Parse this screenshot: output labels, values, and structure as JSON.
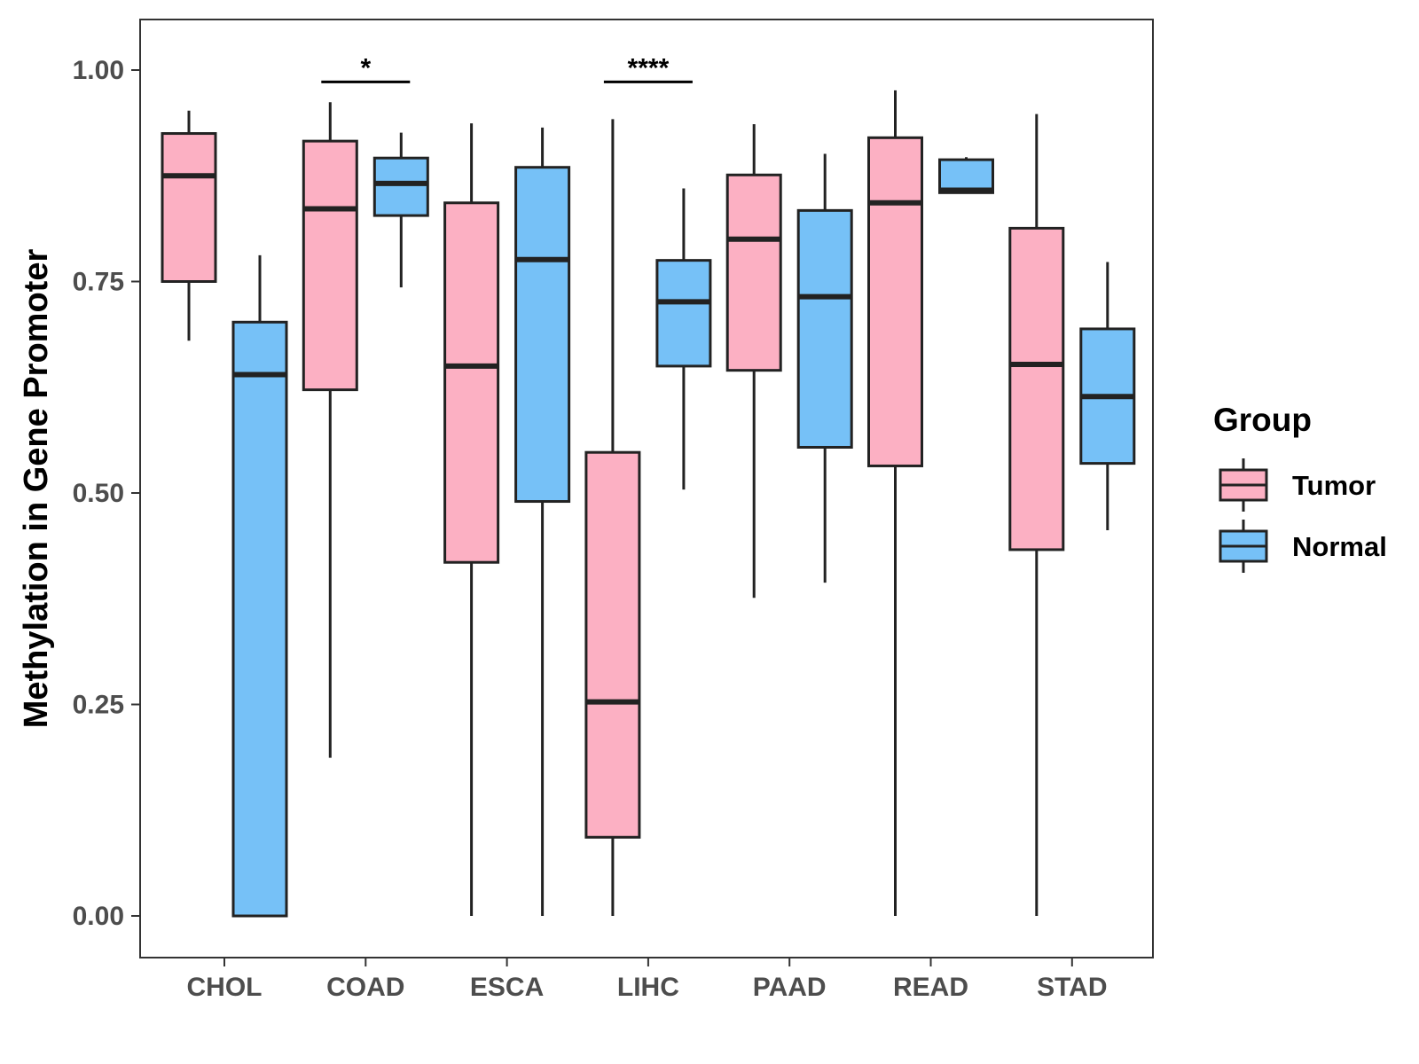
{
  "chart_data": {
    "type": "boxplot",
    "title": "",
    "xlabel": "",
    "ylabel": "Methylation in Gene Promoter",
    "ylim": [
      -0.05,
      1.06
    ],
    "yticks": [
      0.0,
      0.25,
      0.5,
      0.75,
      1.0
    ],
    "ytick_labels": [
      "0.00",
      "0.25",
      "0.50",
      "0.75",
      "1.00"
    ],
    "categories": [
      "CHOL",
      "COAD",
      "ESCA",
      "LIHC",
      "PAAD",
      "READ",
      "STAD"
    ],
    "legend": {
      "title": "Group",
      "position": "right",
      "entries": [
        {
          "name": "Tumor",
          "color": "#fcb0c3"
        },
        {
          "name": "Normal",
          "color": "#76c1f7"
        }
      ]
    },
    "series": [
      {
        "name": "Tumor",
        "color": "#fcb0c3",
        "boxes": [
          {
            "category": "CHOL",
            "min": 0.68,
            "q1": 0.75,
            "median": 0.875,
            "q3": 0.925,
            "max": 0.952
          },
          {
            "category": "COAD",
            "min": 0.187,
            "q1": 0.622,
            "median": 0.836,
            "q3": 0.916,
            "max": 0.962
          },
          {
            "category": "ESCA",
            "min": 0.0,
            "q1": 0.418,
            "median": 0.65,
            "q3": 0.843,
            "max": 0.937
          },
          {
            "category": "LIHC",
            "min": 0.0,
            "q1": 0.093,
            "median": 0.253,
            "q3": 0.548,
            "max": 0.942
          },
          {
            "category": "PAAD",
            "min": 0.376,
            "q1": 0.645,
            "median": 0.8,
            "q3": 0.876,
            "max": 0.936
          },
          {
            "category": "READ",
            "min": 0.0,
            "q1": 0.532,
            "median": 0.843,
            "q3": 0.92,
            "max": 0.976
          },
          {
            "category": "STAD",
            "min": 0.0,
            "q1": 0.433,
            "median": 0.652,
            "q3": 0.813,
            "max": 0.948
          }
        ]
      },
      {
        "name": "Normal",
        "color": "#76c1f7",
        "boxes": [
          {
            "category": "CHOL",
            "min": 0.0,
            "q1": 0.0,
            "median": 0.64,
            "q3": 0.702,
            "max": 0.781
          },
          {
            "category": "COAD",
            "min": 0.743,
            "q1": 0.828,
            "median": 0.866,
            "q3": 0.896,
            "max": 0.926
          },
          {
            "category": "ESCA",
            "min": 0.0,
            "q1": 0.49,
            "median": 0.776,
            "q3": 0.885,
            "max": 0.932
          },
          {
            "category": "LIHC",
            "min": 0.504,
            "q1": 0.65,
            "median": 0.726,
            "q3": 0.775,
            "max": 0.86
          },
          {
            "category": "PAAD",
            "min": 0.394,
            "q1": 0.554,
            "median": 0.732,
            "q3": 0.834,
            "max": 0.901
          },
          {
            "category": "READ",
            "min": 0.855,
            "q1": 0.855,
            "median": 0.858,
            "q3": 0.894,
            "max": 0.897
          },
          {
            "category": "STAD",
            "min": 0.456,
            "q1": 0.535,
            "median": 0.614,
            "q3": 0.694,
            "max": 0.773
          }
        ]
      }
    ],
    "annotations": [
      {
        "category": "COAD",
        "label": "*",
        "y": 0.986
      },
      {
        "category": "LIHC",
        "label": "****",
        "y": 0.986
      }
    ]
  }
}
